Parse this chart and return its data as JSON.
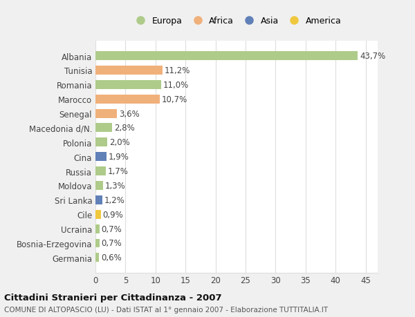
{
  "countries": [
    "Albania",
    "Tunisia",
    "Romania",
    "Marocco",
    "Senegal",
    "Macedonia d/N.",
    "Polonia",
    "Cina",
    "Russia",
    "Moldova",
    "Sri Lanka",
    "Cile",
    "Ucraina",
    "Bosnia-Erzegovina",
    "Germania"
  ],
  "values": [
    43.7,
    11.2,
    11.0,
    10.7,
    3.6,
    2.8,
    2.0,
    1.9,
    1.7,
    1.3,
    1.2,
    0.9,
    0.7,
    0.7,
    0.6
  ],
  "labels": [
    "43,7%",
    "11,2%",
    "11,0%",
    "10,7%",
    "3,6%",
    "2,8%",
    "2,0%",
    "1,9%",
    "1,7%",
    "1,3%",
    "1,2%",
    "0,9%",
    "0,7%",
    "0,7%",
    "0,6%"
  ],
  "continents": [
    "Europa",
    "Africa",
    "Europa",
    "Africa",
    "Africa",
    "Europa",
    "Europa",
    "Asia",
    "Europa",
    "Europa",
    "Asia",
    "America",
    "Europa",
    "Europa",
    "Europa"
  ],
  "continent_colors": {
    "Europa": "#aecb8a",
    "Africa": "#f0b07a",
    "Asia": "#6080b8",
    "America": "#f0c840"
  },
  "legend_order": [
    "Europa",
    "Africa",
    "Asia",
    "America"
  ],
  "title": "Cittadini Stranieri per Cittadinanza - 2007",
  "subtitle": "COMUNE DI ALTOPASCIO (LU) - Dati ISTAT al 1° gennaio 2007 - Elaborazione TUTTITALIA.IT",
  "xlim": [
    0,
    47
  ],
  "xticks": [
    0,
    5,
    10,
    15,
    20,
    25,
    30,
    35,
    40,
    45
  ],
  "bg_color": "#f0f0f0",
  "plot_bg_color": "#ffffff",
  "grid_color": "#dddddd",
  "label_fontsize": 8.5,
  "ytick_fontsize": 8.5,
  "xtick_fontsize": 8.5,
  "legend_fontsize": 9,
  "title_fontsize": 9.5,
  "subtitle_fontsize": 7.5,
  "bar_height": 0.62
}
